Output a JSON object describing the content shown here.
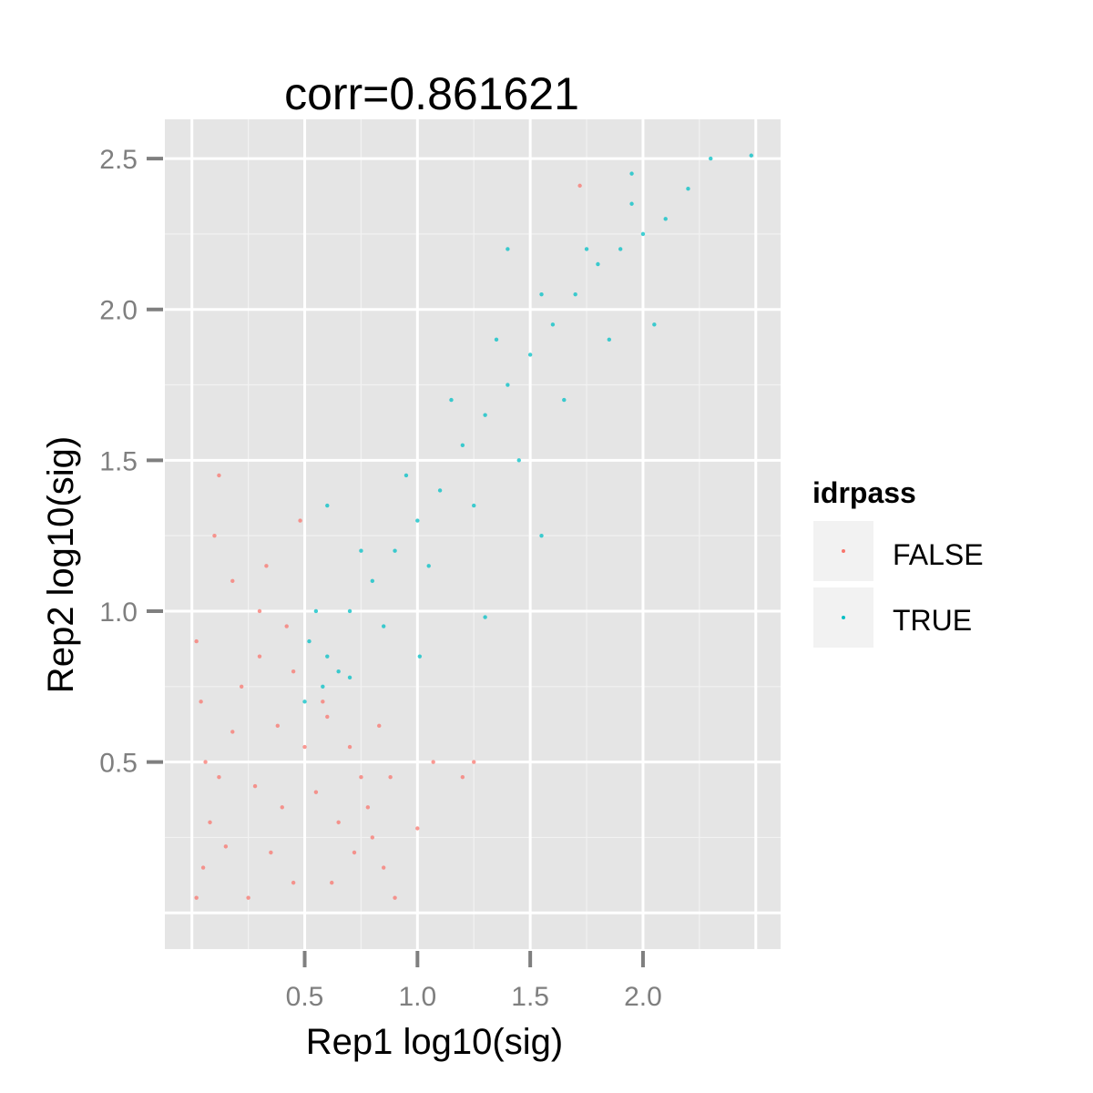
{
  "chart_data": {
    "type": "scatter",
    "title": "corr=0.861621",
    "xlabel": "Rep1 log10(sig)",
    "ylabel": "Rep2 log10(sig)",
    "xlim": [
      -0.12,
      2.61
    ],
    "ylim": [
      -0.12,
      2.63
    ],
    "x_ticks": [
      0.5,
      1.0,
      1.5,
      2.0
    ],
    "x_tick_labels": [
      "0.5",
      "1.0",
      "1.5",
      "2.0"
    ],
    "y_ticks": [
      0.5,
      1.0,
      1.5,
      2.0,
      2.5
    ],
    "y_tick_labels": [
      "0.5",
      "1.0",
      "1.5",
      "2.0",
      "2.5"
    ],
    "grid": true,
    "legend": {
      "title": "idrpass",
      "placement": "right",
      "entries": [
        {
          "label": "FALSE",
          "color": "#F8766D"
        },
        {
          "label": "TRUE",
          "color": "#00BFC4"
        }
      ]
    },
    "series": [
      {
        "name": "FALSE",
        "color": "#F8766D",
        "points": [
          [
            0.02,
            0.05
          ],
          [
            0.05,
            0.15
          ],
          [
            0.08,
            0.3
          ],
          [
            0.12,
            0.45
          ],
          [
            0.18,
            0.6
          ],
          [
            0.22,
            0.75
          ],
          [
            0.3,
            0.85
          ],
          [
            0.35,
            0.2
          ],
          [
            0.4,
            0.35
          ],
          [
            0.45,
            0.1
          ],
          [
            0.1,
            1.25
          ],
          [
            0.18,
            1.1
          ],
          [
            0.3,
            1.0
          ],
          [
            0.42,
            0.95
          ],
          [
            0.48,
            1.3
          ],
          [
            0.5,
            0.55
          ],
          [
            0.55,
            0.4
          ],
          [
            0.6,
            0.65
          ],
          [
            0.65,
            0.3
          ],
          [
            0.7,
            0.55
          ],
          [
            0.75,
            0.45
          ],
          [
            0.8,
            0.25
          ],
          [
            0.85,
            0.15
          ],
          [
            0.9,
            0.05
          ],
          [
            1.0,
            0.28
          ],
          [
            1.07,
            0.5
          ],
          [
            1.2,
            0.45
          ],
          [
            1.25,
            0.5
          ],
          [
            0.83,
            0.62
          ],
          [
            0.12,
            1.45
          ],
          [
            1.72,
            2.41
          ],
          [
            0.02,
            0.9
          ],
          [
            0.04,
            0.7
          ],
          [
            0.06,
            0.5
          ],
          [
            0.25,
            0.05
          ],
          [
            0.38,
            0.62
          ],
          [
            0.28,
            0.42
          ],
          [
            0.15,
            0.22
          ],
          [
            0.45,
            0.8
          ],
          [
            0.33,
            1.15
          ],
          [
            0.58,
            0.7
          ],
          [
            0.62,
            0.1
          ],
          [
            0.72,
            0.2
          ],
          [
            0.78,
            0.35
          ],
          [
            0.88,
            0.45
          ]
        ]
      },
      {
        "name": "TRUE",
        "color": "#00BFC4",
        "points": [
          [
            0.5,
            0.7
          ],
          [
            0.6,
            0.85
          ],
          [
            0.7,
            1.0
          ],
          [
            0.8,
            1.1
          ],
          [
            0.9,
            1.2
          ],
          [
            1.0,
            1.3
          ],
          [
            1.1,
            1.4
          ],
          [
            1.2,
            1.55
          ],
          [
            1.3,
            1.65
          ],
          [
            1.4,
            1.75
          ],
          [
            1.5,
            1.85
          ],
          [
            1.6,
            1.95
          ],
          [
            1.7,
            2.05
          ],
          [
            1.8,
            2.15
          ],
          [
            1.9,
            2.2
          ],
          [
            2.0,
            2.25
          ],
          [
            2.1,
            2.3
          ],
          [
            2.2,
            2.4
          ],
          [
            2.3,
            2.5
          ],
          [
            2.48,
            2.51
          ],
          [
            0.55,
            1.0
          ],
          [
            0.65,
            0.8
          ],
          [
            0.75,
            1.2
          ],
          [
            0.85,
            0.95
          ],
          [
            0.95,
            1.45
          ],
          [
            1.05,
            1.15
          ],
          [
            1.15,
            1.7
          ],
          [
            1.25,
            1.35
          ],
          [
            1.35,
            1.9
          ],
          [
            1.45,
            1.5
          ],
          [
            1.55,
            2.05
          ],
          [
            1.65,
            1.7
          ],
          [
            1.75,
            2.2
          ],
          [
            1.85,
            1.9
          ],
          [
            1.95,
            2.35
          ],
          [
            1.3,
            0.98
          ],
          [
            1.01,
            0.85
          ],
          [
            0.6,
            1.35
          ],
          [
            1.4,
            2.2
          ],
          [
            1.55,
            1.25
          ],
          [
            1.95,
            2.45
          ],
          [
            2.05,
            1.95
          ],
          [
            0.52,
            0.9
          ],
          [
            0.58,
            0.75
          ],
          [
            0.7,
            0.78
          ]
        ]
      }
    ]
  }
}
